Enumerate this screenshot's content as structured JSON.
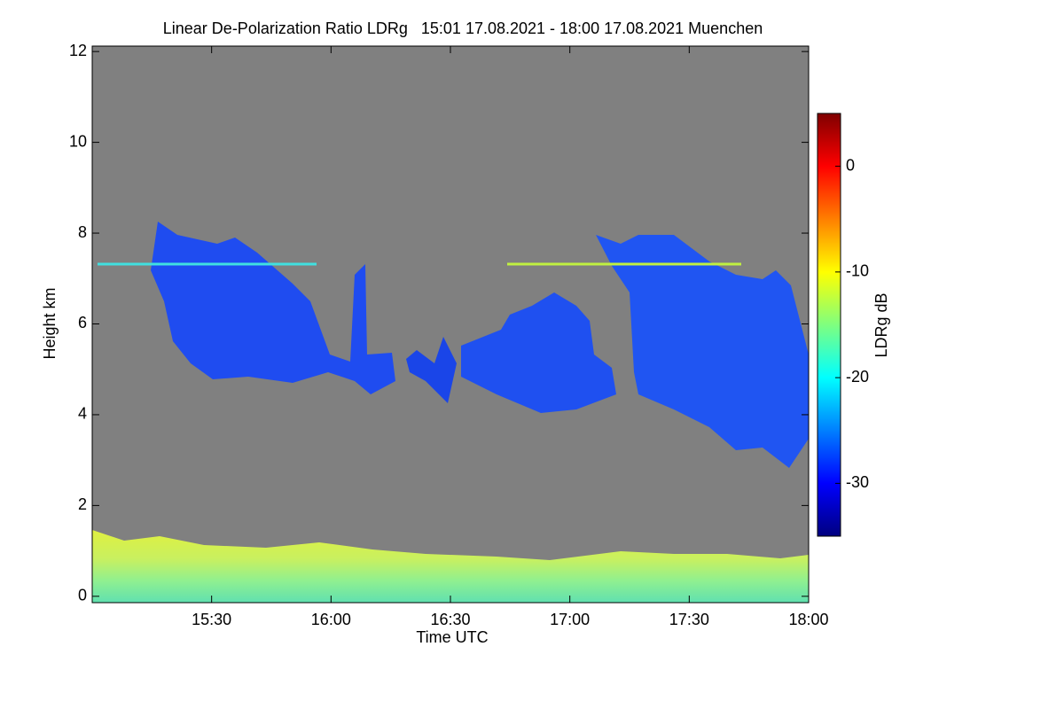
{
  "chart_data": {
    "type": "heatmap",
    "title": "Linear De-Polarization Ratio LDRg   15:01 17.08.2021 - 18:00 17.08.2021 Muenchen",
    "x_label": "Time UTC",
    "y_label": "Height km",
    "xlim": [
      15.0,
      18.0
    ],
    "xticks": [
      {
        "value": 15.5,
        "label": "15:30"
      },
      {
        "value": 16.0,
        "label": "16:00"
      },
      {
        "value": 16.5,
        "label": "16:30"
      },
      {
        "value": 17.0,
        "label": "17:00"
      },
      {
        "value": 17.5,
        "label": "17:30"
      },
      {
        "value": 18.0,
        "label": "18:00"
      }
    ],
    "ylim": [
      -0.14,
      12.12
    ],
    "yticks": [
      0,
      2,
      4,
      6,
      8,
      10,
      12
    ],
    "colorbar": {
      "label": "LDRg dB",
      "clim": [
        -35,
        5
      ],
      "ticks": [
        0,
        -10,
        -20,
        -30
      ],
      "colormap": [
        "#00007f",
        "#0000ff",
        "#007fff",
        "#00ffff",
        "#7fff7f",
        "#ffff00",
        "#ff7f00",
        "#ff0000",
        "#7f0000"
      ]
    },
    "background_color": "#808080"
  }
}
